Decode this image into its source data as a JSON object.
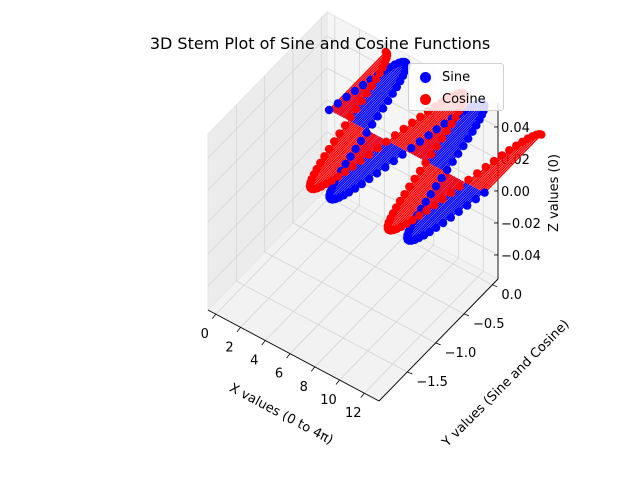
{
  "chart_data": {
    "type": "scatter",
    "title": "3D Stem Plot of Sine and Cosine Functions",
    "xlabel": "X values (0 to 4π)",
    "ylabel": "Y values (Sine and Cosine)",
    "zlabel": "Z values (0)",
    "xlim": [
      -0.63,
      13.19
    ],
    "ylim": [
      -2.0,
      0.1
    ],
    "zlim": [
      -0.055,
      0.055
    ],
    "x_ticks": [
      "0",
      "2",
      "4",
      "6",
      "8",
      "10",
      "12"
    ],
    "y_ticks": [
      "−1.5",
      "−1.0",
      "−0.5",
      "0.0"
    ],
    "z_ticks": [
      "−0.04",
      "−0.02",
      "0.00",
      "0.02",
      "0.04"
    ],
    "grid": true,
    "legend_position": "top-right",
    "x_range": [
      0,
      12.566
    ],
    "num_points": 100,
    "series": [
      {
        "name": "Sine",
        "color": "#0000ff",
        "function": "sin(x)",
        "z": 0
      },
      {
        "name": "Cosine",
        "color": "#ff0000",
        "function": "cos(x)",
        "z": 0
      }
    ]
  }
}
